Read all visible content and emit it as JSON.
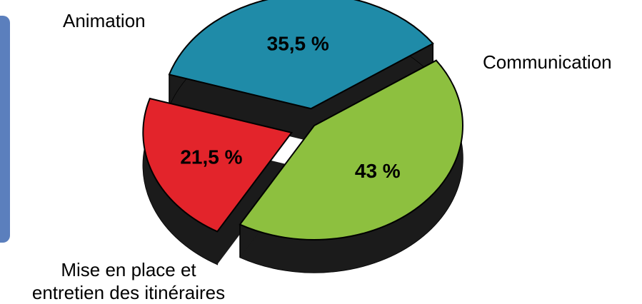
{
  "chart_data": {
    "type": "pie",
    "title": "",
    "categories": [
      "Animation",
      "Communication",
      "Mise en place et entretien des itinéraires"
    ],
    "values": [
      21.5,
      35.5,
      43
    ],
    "value_labels": [
      "21,5 %",
      "35,5 %",
      "43 %"
    ],
    "colors": [
      "#e3242b",
      "#1f8ba8",
      "#8dc03f"
    ],
    "side_color": "#1b1b1b",
    "legend": "none",
    "labels_text": {
      "animation": "Animation",
      "communication": "Communication",
      "mise_line1": "Mise en place et",
      "mise_line2": "entretien des itinéraires"
    }
  }
}
